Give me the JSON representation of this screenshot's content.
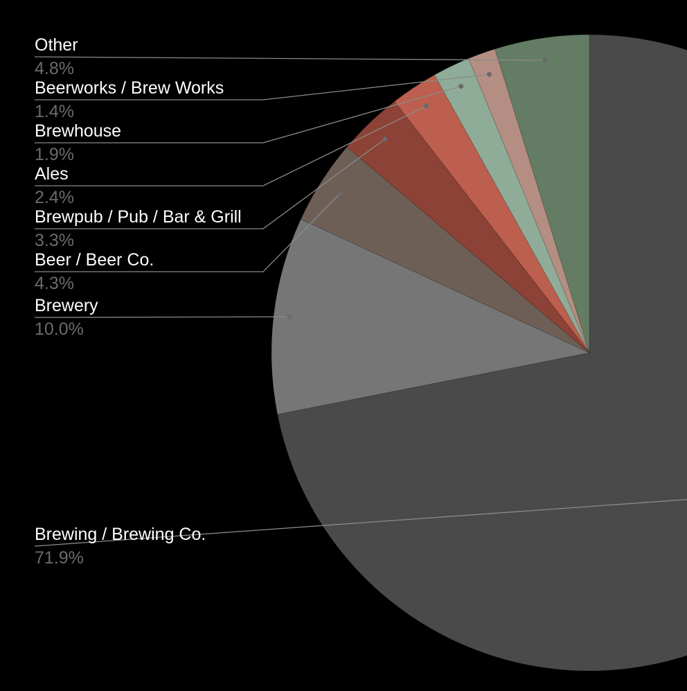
{
  "chart_data": {
    "type": "pie",
    "title": "",
    "start_angle_deg": 0,
    "direction": "clockwise",
    "legend": "none",
    "label_style": "left-side callouts with leader lines",
    "slices": [
      {
        "label": "Brewing / Brewing Co.",
        "value": 71.9,
        "value_label": "71.9%",
        "color": "#4a4a4a"
      },
      {
        "label": "Brewery",
        "value": 10.0,
        "value_label": "10.0%",
        "color": "#767676"
      },
      {
        "label": "Beer / Beer Co.",
        "value": 4.3,
        "value_label": "4.3%",
        "color": "#6e5f56"
      },
      {
        "label": "Brewpub / Pub / Bar & Grill",
        "value": 3.3,
        "value_label": "3.3%",
        "color": "#8c4236"
      },
      {
        "label": "Ales",
        "value": 2.4,
        "value_label": "2.4%",
        "color": "#bd5f4e"
      },
      {
        "label": "Brewhouse",
        "value": 1.9,
        "value_label": "1.9%",
        "color": "#8fac98"
      },
      {
        "label": "Beerworks / Brew Works",
        "value": 1.4,
        "value_label": "1.4%",
        "color": "#b48e82"
      },
      {
        "label": "Other",
        "value": 4.8,
        "value_label": "4.8%",
        "color": "#637c63"
      }
    ]
  }
}
